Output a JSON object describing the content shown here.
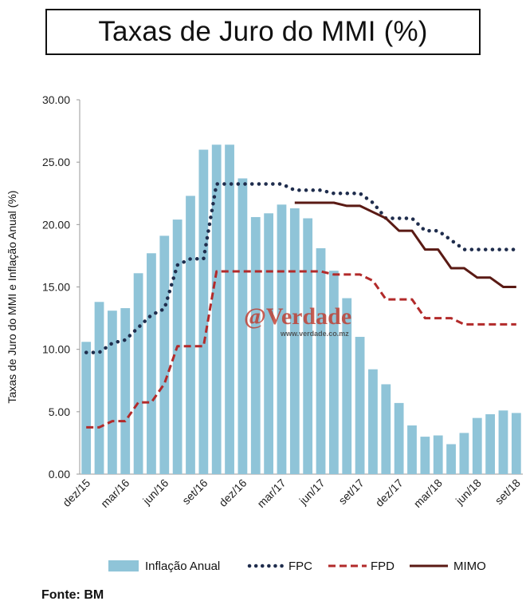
{
  "title": "Taxas de Juro do MMI (%)",
  "source": "Fonte: BM",
  "watermark": {
    "text": "@Verdade",
    "url": "www.verdade.co.mz"
  },
  "legend": {
    "inflacao": "Inflação Anual",
    "fpc": "FPC",
    "fpd": "FPD",
    "mimo": "MIMO"
  },
  "colors": {
    "bar": "#8fc4d8",
    "fpc": "#1f2d4d",
    "fpd": "#b22a2a",
    "mimo": "#5a1a14"
  },
  "chart_data": {
    "type": "bar",
    "ylabel": "Taxas de Juro do MMI e Inflação Anual (%)",
    "ylim": [
      0,
      30
    ],
    "yticks": [
      "0.00",
      "5.00",
      "10.00",
      "15.00",
      "20.00",
      "25.00",
      "30.00"
    ],
    "tick_labels": [
      {
        "index": 0,
        "label": "dez/15"
      },
      {
        "index": 3,
        "label": "mar/16"
      },
      {
        "index": 6,
        "label": "jun/16"
      },
      {
        "index": 9,
        "label": "set/16"
      },
      {
        "index": 12,
        "label": "dez/16"
      },
      {
        "index": 15,
        "label": "mar/17"
      },
      {
        "index": 18,
        "label": "jun/17"
      },
      {
        "index": 21,
        "label": "set/17"
      },
      {
        "index": 24,
        "label": "dez/17"
      },
      {
        "index": 27,
        "label": "mar/18"
      },
      {
        "index": 30,
        "label": "jun/18"
      },
      {
        "index": 33,
        "label": "set/18"
      }
    ],
    "series": [
      {
        "name": "Inflação Anual",
        "kind": "bar",
        "values": [
          10.6,
          13.8,
          13.1,
          13.3,
          16.1,
          17.7,
          19.1,
          20.4,
          22.3,
          26.0,
          26.4,
          26.4,
          23.7,
          20.6,
          20.9,
          21.6,
          21.3,
          20.5,
          18.1,
          16.3,
          14.1,
          11.0,
          8.4,
          7.2,
          5.7,
          3.9,
          3.0,
          3.1,
          2.4,
          3.3,
          4.5,
          4.8,
          5.1,
          4.9
        ]
      },
      {
        "name": "FPC",
        "kind": "line",
        "style": "dotted",
        "values": [
          9.75,
          9.75,
          10.5,
          10.75,
          11.75,
          12.75,
          13.25,
          16.75,
          17.25,
          17.25,
          23.25,
          23.25,
          23.25,
          23.25,
          23.25,
          23.25,
          22.75,
          22.75,
          22.75,
          22.5,
          22.5,
          22.5,
          21.75,
          20.5,
          20.5,
          20.5,
          19.5,
          19.5,
          18.75,
          18.0,
          18.0,
          18.0,
          18.0,
          18.0
        ]
      },
      {
        "name": "FPD",
        "kind": "line",
        "style": "dashed",
        "values": [
          3.75,
          3.75,
          4.25,
          4.25,
          5.75,
          5.75,
          7.25,
          10.25,
          10.25,
          10.25,
          16.25,
          16.25,
          16.25,
          16.25,
          16.25,
          16.25,
          16.25,
          16.25,
          16.25,
          16.0,
          16.0,
          16.0,
          15.5,
          14.0,
          14.0,
          14.0,
          12.5,
          12.5,
          12.5,
          12.0,
          12.0,
          12.0,
          12.0,
          12.0
        ]
      },
      {
        "name": "MIMO",
        "kind": "line",
        "style": "solid",
        "values": [
          null,
          null,
          null,
          null,
          null,
          null,
          null,
          null,
          null,
          null,
          null,
          null,
          null,
          null,
          null,
          null,
          21.75,
          21.75,
          21.75,
          21.75,
          21.5,
          21.5,
          21.0,
          20.5,
          19.5,
          19.5,
          18.0,
          18.0,
          16.5,
          16.5,
          15.75,
          15.75,
          15.0,
          15.0
        ]
      }
    ]
  }
}
